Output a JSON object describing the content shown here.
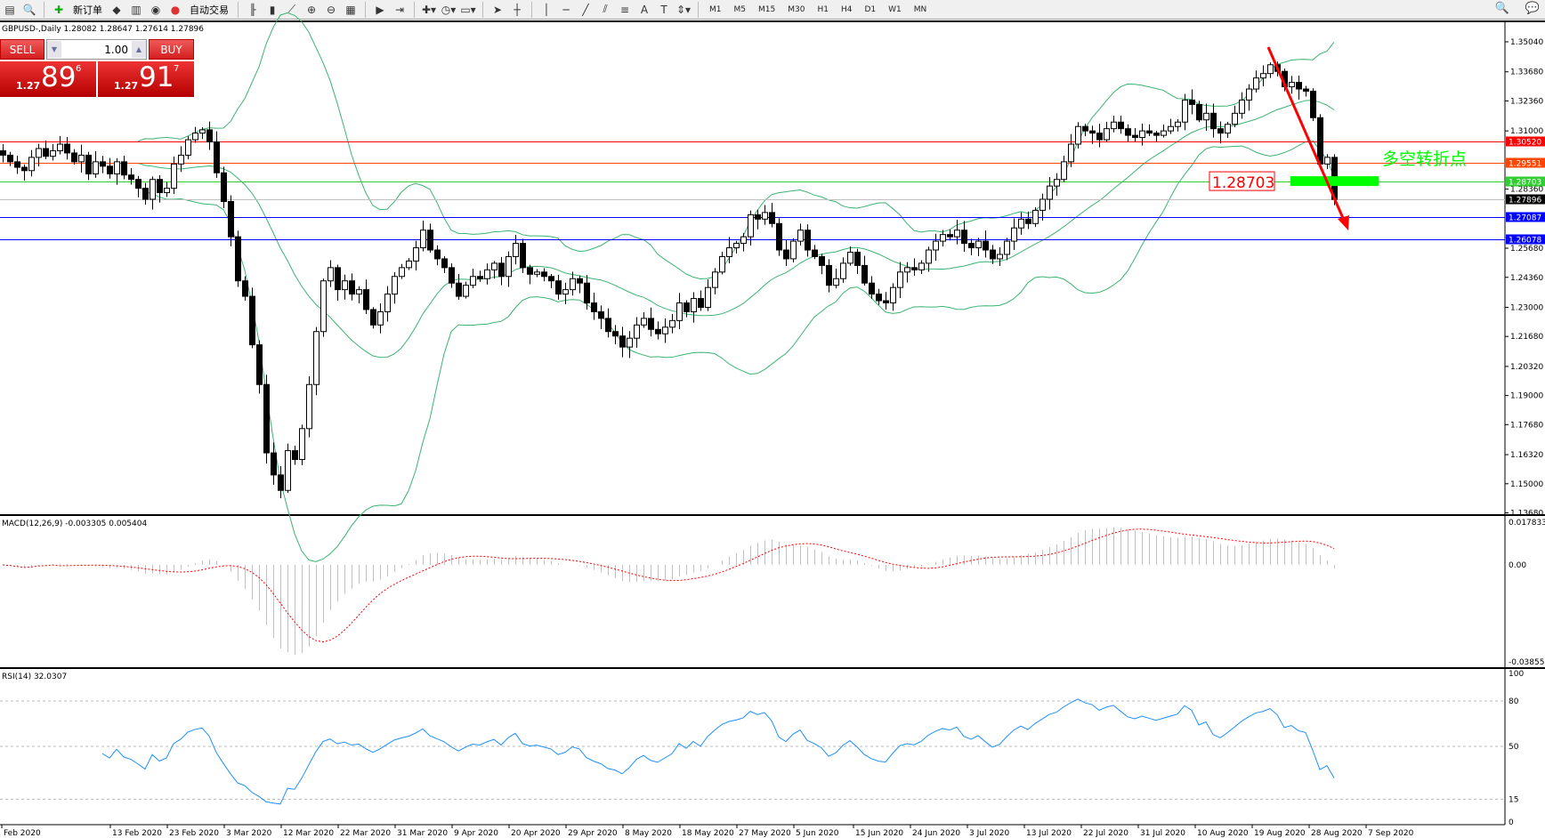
{
  "toolbar": {
    "new_order": "新订单",
    "auto_trading": "自动交易",
    "timeframes": [
      "M1",
      "M5",
      "M15",
      "M30",
      "H1",
      "H4",
      "D1",
      "W1",
      "MN"
    ],
    "icons": [
      "new-chart-icon",
      "profiles-icon",
      "new-order-icon",
      "market-watch-icon",
      "navigator-icon",
      "terminal-icon",
      "autotrading-icon",
      "bar-chart-icon",
      "candlestick-icon",
      "line-chart-icon",
      "zoom-in-icon",
      "zoom-out-icon",
      "tile-windows-icon",
      "auto-scroll-icon",
      "chart-shift-icon",
      "indicators-icon",
      "periods-icon",
      "templates-icon",
      "cursor-icon",
      "crosshair-icon",
      "vertical-line-icon",
      "horizontal-line-icon",
      "trendline-icon",
      "equidistant-channel-icon",
      "fibonacci-icon",
      "text-icon",
      "text-label-icon",
      "arrows-icon"
    ]
  },
  "chart": {
    "title": "GBPUSD-,Daily  1.28082 1.28647 1.27614 1.27896",
    "symbol": "GBPUSD-",
    "period": "Daily"
  },
  "one_click": {
    "sell_label": "SELL",
    "buy_label": "BUY",
    "lot": "1.00",
    "sell_small": "1.27",
    "sell_big": "89",
    "sell_pip": "6",
    "buy_small": "1.27",
    "buy_big": "91",
    "buy_pip": "7"
  },
  "price_axis": [
    "1.35040",
    "1.33680",
    "1.32360",
    "1.31000",
    "1.28360",
    "1.25680",
    "1.24360",
    "1.23000",
    "1.21680",
    "1.20320",
    "1.19000",
    "1.17680",
    "1.16320",
    "1.15000",
    "1.13680"
  ],
  "hlines": [
    {
      "price": "1.30520",
      "color": "#ff0000"
    },
    {
      "price": "1.29551",
      "color": "#ff4500"
    },
    {
      "price": "1.28703",
      "color": "#32cd32"
    },
    {
      "price": "1.27896",
      "color": "#000000",
      "line": "#c0c0c0"
    },
    {
      "price": "1.27087",
      "color": "#0000ff"
    },
    {
      "price": "1.26078",
      "color": "#0000ff"
    }
  ],
  "annotations": {
    "level_label": "1.28703",
    "pivot_text": "多空转折点",
    "pivot_color": "#00ff00",
    "arrow_color": "#ff0000"
  },
  "macd": {
    "label": "MACD(12,26,9) -0.003305 0.005404",
    "axis": [
      "0.017833",
      "0.00",
      "-0.038559"
    ]
  },
  "rsi": {
    "label": "RSI(14) 32.0307",
    "axis": [
      "100",
      "80",
      "50",
      "15",
      "0"
    ]
  },
  "dates": [
    "Feb 2020",
    "13 Feb 2020",
    "23 Feb 2020",
    "3 Mar 2020",
    "12 Mar 2020",
    "22 Mar 2020",
    "31 Mar 2020",
    "9 Apr 2020",
    "20 Apr 2020",
    "29 Apr 2020",
    "8 May 2020",
    "18 May 2020",
    "27 May 2020",
    "5 Jun 2020",
    "15 Jun 2020",
    "24 Jun 2020",
    "3 Jul 2020",
    "13 Jul 2020",
    "22 Jul 2020",
    "31 Jul 2020",
    "10 Aug 2020",
    "19 Aug 2020",
    "28 Aug 2020",
    "7 Sep 2020"
  ],
  "closes": [
    1.299,
    1.296,
    1.2935,
    1.292,
    1.298,
    1.302,
    1.2985,
    1.301,
    1.304,
    1.3,
    1.296,
    1.299,
    1.2905,
    1.296,
    1.294,
    1.2905,
    1.296,
    1.29,
    1.288,
    1.284,
    1.279,
    1.288,
    1.282,
    1.284,
    1.295,
    1.299,
    1.306,
    1.309,
    1.3105,
    1.305,
    1.291,
    1.278,
    1.262,
    1.242,
    1.235,
    1.213,
    1.195,
    1.164,
    1.154,
    1.147,
    1.165,
    1.161,
    1.175,
    1.195,
    1.219,
    1.242,
    1.248,
    1.238,
    1.242,
    1.236,
    1.238,
    1.229,
    1.222,
    1.228,
    1.236,
    1.244,
    1.248,
    1.251,
    1.257,
    1.265,
    1.256,
    1.252,
    1.248,
    1.241,
    1.235,
    1.24,
    1.244,
    1.243,
    1.247,
    1.25,
    1.244,
    1.253,
    1.259,
    1.248,
    1.245,
    1.246,
    1.244,
    1.242,
    1.236,
    1.238,
    1.243,
    1.241,
    1.232,
    1.228,
    1.225,
    1.219,
    1.217,
    1.212,
    1.216,
    1.222,
    1.225,
    1.22,
    1.218,
    1.221,
    1.224,
    1.232,
    1.228,
    1.234,
    1.23,
    1.239,
    1.246,
    1.253,
    1.257,
    1.259,
    1.262,
    1.272,
    1.27,
    1.273,
    1.268,
    1.256,
    1.252,
    1.26,
    1.265,
    1.256,
    1.253,
    1.249,
    1.24,
    1.243,
    1.25,
    1.255,
    1.249,
    1.241,
    1.236,
    1.233,
    1.232,
    1.239,
    1.246,
    1.248,
    1.247,
    1.25,
    1.256,
    1.26,
    1.263,
    1.262,
    1.265,
    1.259,
    1.257,
    1.26,
    1.256,
    1.252,
    1.254,
    1.26,
    1.266,
    1.27,
    1.268,
    1.274,
    1.279,
    1.285,
    1.288,
    1.296,
    1.304,
    1.312,
    1.31,
    1.309,
    1.306,
    1.311,
    1.314,
    1.311,
    1.308,
    1.307,
    1.31,
    1.309,
    1.308,
    1.31,
    1.312,
    1.314,
    1.324,
    1.322,
    1.315,
    1.318,
    1.311,
    1.309,
    1.313,
    1.318,
    1.324,
    1.329,
    1.334,
    1.336,
    1.34,
    1.337,
    1.33,
    1.332,
    1.329,
    1.328,
    1.316,
    1.295,
    1.298,
    1.27896
  ],
  "colors": {
    "bands": "#3cb371",
    "macd_bars": "#c0c0c0",
    "macd_signal": "#ff0000",
    "rsi": "#1e90ff"
  }
}
